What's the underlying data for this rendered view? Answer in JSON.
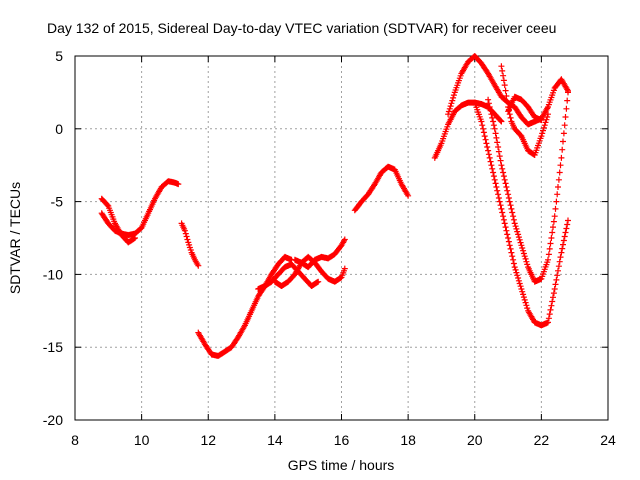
{
  "chart_data": {
    "type": "scatter",
    "title": "Day 132 of 2015, Sidereal Day-to-day VTEC variation (SDTVAR) for receiver ceeu",
    "xlabel": "GPS time / hours",
    "ylabel": "SDTVAR / TECUs",
    "xlim": [
      8,
      24
    ],
    "ylim": [
      -20,
      5
    ],
    "xticks": [
      "8",
      "10",
      "12",
      "14",
      "16",
      "18",
      "20",
      "22",
      "24"
    ],
    "yticks": [
      "-20",
      "-15",
      "-10",
      "-5",
      "0",
      "5"
    ],
    "grid": true,
    "marker": "+",
    "color": "#ff0000",
    "series": [
      {
        "x": [
          8.8,
          9.0,
          9.2,
          9.4,
          9.6,
          9.8,
          10.0,
          10.2,
          10.4,
          10.6,
          10.8,
          11.0,
          11.1
        ],
        "y": [
          -5.8,
          -6.5,
          -7.0,
          -7.2,
          -7.3,
          -7.2,
          -6.8,
          -5.8,
          -4.8,
          -4.0,
          -3.6,
          -3.7,
          -3.8
        ]
      },
      {
        "x": [
          8.8,
          9.0,
          9.2,
          9.4,
          9.6,
          9.8
        ],
        "y": [
          -4.8,
          -5.3,
          -6.5,
          -7.3,
          -7.8,
          -7.5
        ]
      },
      {
        "x": [
          11.2,
          11.3,
          11.4,
          11.5,
          11.6,
          11.7
        ],
        "y": [
          -6.5,
          -7.0,
          -7.8,
          -8.5,
          -9.0,
          -9.4
        ]
      },
      {
        "x": [
          11.7,
          11.9,
          12.1,
          12.3,
          12.5,
          12.7,
          12.9,
          13.1,
          13.3,
          13.5,
          13.7,
          13.9,
          14.1,
          14.3,
          14.5
        ],
        "y": [
          -14.0,
          -14.8,
          -15.5,
          -15.6,
          -15.3,
          -15.0,
          -14.3,
          -13.5,
          -12.5,
          -11.5,
          -10.8,
          -10.0,
          -9.3,
          -8.8,
          -9.0
        ]
      },
      {
        "x": [
          13.5,
          13.7,
          13.9,
          14.1,
          14.3,
          14.5,
          14.7,
          14.9,
          15.1,
          15.3
        ],
        "y": [
          -11.0,
          -10.8,
          -10.5,
          -10.0,
          -9.5,
          -9.3,
          -9.8,
          -10.3,
          -10.8,
          -10.5
        ]
      },
      {
        "x": [
          14.0,
          14.2,
          14.4,
          14.6,
          14.8,
          15.0,
          15.2,
          15.4,
          15.6,
          15.8,
          16.0,
          16.1
        ],
        "y": [
          -10.5,
          -10.8,
          -10.5,
          -10.0,
          -9.2,
          -8.8,
          -9.2,
          -9.8,
          -10.3,
          -10.5,
          -10.2,
          -9.6
        ]
      },
      {
        "x": [
          14.6,
          14.8,
          15.0,
          15.2,
          15.4,
          15.6,
          15.8,
          16.0,
          16.1
        ],
        "y": [
          -9.0,
          -9.2,
          -9.5,
          -9.0,
          -8.8,
          -8.9,
          -8.6,
          -8.0,
          -7.6
        ]
      },
      {
        "x": [
          16.4,
          16.6,
          16.8,
          17.0,
          17.2,
          17.4,
          17.6,
          17.8,
          18.0
        ],
        "y": [
          -5.6,
          -5.0,
          -4.5,
          -3.8,
          -3.0,
          -2.6,
          -2.8,
          -3.8,
          -4.6
        ]
      },
      {
        "x": [
          18.8,
          19.0,
          19.2,
          19.4,
          19.6,
          19.8,
          20.0,
          20.2,
          20.4,
          20.6,
          20.8
        ],
        "y": [
          -2.0,
          -1.0,
          0.3,
          1.2,
          1.6,
          1.8,
          1.8,
          1.7,
          1.5,
          1.0,
          0.5
        ]
      },
      {
        "x": [
          19.2,
          19.4,
          19.6,
          19.8,
          20.0,
          20.2,
          20.4,
          20.6,
          20.8,
          21.0,
          21.2,
          21.4,
          21.6,
          21.8,
          22.0,
          22.2,
          22.4,
          22.6,
          22.8
        ],
        "y": [
          1.0,
          2.5,
          3.8,
          4.6,
          5.0,
          4.5,
          3.8,
          3.0,
          2.2,
          1.8,
          1.5,
          0.8,
          0.3,
          0.5,
          0.7,
          1.5,
          2.8,
          3.4,
          2.6
        ]
      },
      {
        "x": [
          20.0,
          20.2,
          20.4,
          20.6,
          20.8,
          21.0,
          21.2,
          21.4,
          21.6,
          21.8,
          22.0,
          22.2,
          22.4,
          22.6,
          22.8
        ],
        "y": [
          1.8,
          0.5,
          -1.5,
          -3.5,
          -5.5,
          -7.5,
          -9.5,
          -11.0,
          -12.5,
          -13.3,
          -13.5,
          -13.3,
          -11.0,
          -8.5,
          -6.3
        ]
      },
      {
        "x": [
          20.4,
          20.6,
          20.8,
          21.0,
          21.2,
          21.4,
          21.6,
          21.8,
          22.0,
          22.2,
          22.4,
          22.6,
          22.8
        ],
        "y": [
          2.0,
          0.0,
          -2.5,
          -4.5,
          -6.5,
          -8.0,
          -9.5,
          -10.5,
          -10.3,
          -9.0,
          -6.0,
          -2.0,
          2.5
        ]
      },
      {
        "x": [
          20.8,
          20.9,
          21.0,
          21.1,
          21.2,
          21.4,
          21.6,
          21.8,
          22.0,
          22.2
        ],
        "y": [
          4.3,
          3.0,
          1.5,
          0.5,
          0.0,
          -0.5,
          -1.5,
          -1.8,
          -0.5,
          1.0
        ]
      },
      {
        "x": [
          21.0,
          21.2,
          21.4,
          21.6,
          21.8,
          22.0
        ],
        "y": [
          1.2,
          2.2,
          2.0,
          1.5,
          0.8,
          0.6
        ]
      }
    ]
  }
}
